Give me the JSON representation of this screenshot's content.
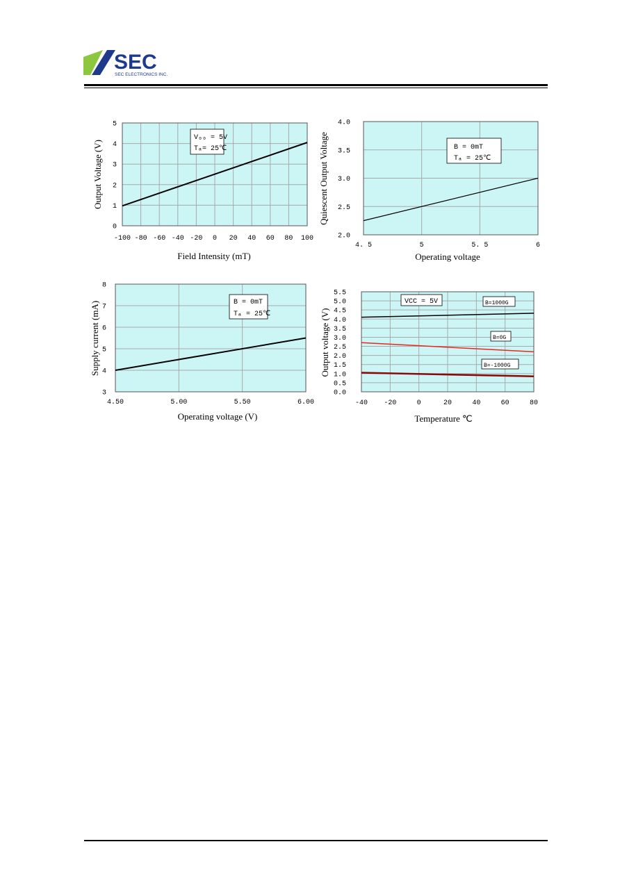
{
  "header": {
    "logo_text": "SEC",
    "logo_subtext": "SEC ELECTRONICS INC.",
    "colors": {
      "logo_green": "#8dc63f",
      "logo_blue": "#1e3a8a"
    }
  },
  "style": {
    "plot_bg": "#ccf6f6",
    "grid": "#a8a8a8",
    "black_line": "#000000",
    "red_line": "#e8261c",
    "dark_red_line": "#8a0a0a"
  },
  "chart_data": [
    {
      "type": "line",
      "xlabel": "Field Intensity (mT)",
      "ylabel": "Output Voltage (V)",
      "xlim": [
        -100,
        100
      ],
      "ylim": [
        0,
        5
      ],
      "xticks": [
        "-100",
        "-80",
        "-60",
        "-40",
        "-20",
        "0",
        "20",
        "40",
        "60",
        "80",
        "100"
      ],
      "yticks": [
        "0",
        "1",
        "2",
        "3",
        "4",
        "5"
      ],
      "annotation": [
        "V₀₀ = 5V",
        "Tₐ= 25℃"
      ],
      "series": [
        {
          "x": [
            -100,
            100
          ],
          "y": [
            0.97,
            4.05
          ],
          "color": "#000000"
        }
      ]
    },
    {
      "type": "line",
      "xlabel": "Operating voltage",
      "ylabel": "Quiescent Output Voltage",
      "xlim": [
        4.5,
        6
      ],
      "ylim": [
        2.0,
        4.0
      ],
      "xticks": [
        "4. 5",
        "5",
        "5. 5",
        "6"
      ],
      "yticks": [
        "2.0",
        "2.5",
        "3.0",
        "3.5",
        "4.0"
      ],
      "annotation": [
        "B  =  0mT",
        "Tₐ  =  25℃"
      ],
      "series": [
        {
          "x": [
            4.5,
            6
          ],
          "y": [
            2.25,
            3.0
          ],
          "color": "#000000"
        }
      ]
    },
    {
      "type": "line",
      "xlabel": "Operating voltage  (V)",
      "ylabel": "Supply current  (mA)",
      "xlim": [
        4.5,
        6.0
      ],
      "ylim": [
        3,
        8
      ],
      "xticks": [
        "4.50",
        "5.00",
        "5.50",
        "6.00"
      ],
      "yticks": [
        "3",
        "4",
        "5",
        "6",
        "7",
        "8"
      ],
      "annotation": [
        "B = 0mT",
        "Tₐ = 25℃"
      ],
      "series": [
        {
          "x": [
            4.5,
            6.0
          ],
          "y": [
            4.0,
            5.5
          ],
          "color": "#000000"
        }
      ]
    },
    {
      "type": "line",
      "xlabel": "Temperature    ℃",
      "ylabel": "Output voltage (V)",
      "xlim": [
        -40,
        85
      ],
      "ylim": [
        0.0,
        5.5
      ],
      "xticks": [
        "-40",
        "-20",
        "0",
        "20",
        "40",
        "60",
        "80"
      ],
      "yticks": [
        "0.0",
        "0.5",
        "1.0",
        "1.5",
        "2.0",
        "2.5",
        "3.0",
        "3.5",
        "4.0",
        "4.5",
        "5.0",
        "5.5"
      ],
      "annotation": [
        "VCC = 5V"
      ],
      "series": [
        {
          "name": "B=1000G",
          "x": [
            -40,
            85
          ],
          "y": [
            4.1,
            4.32
          ],
          "color": "#000000"
        },
        {
          "name": "B=0G",
          "x": [
            -40,
            85
          ],
          "y": [
            2.7,
            2.2
          ],
          "color": "#e8261c"
        },
        {
          "name": "B=-1000G",
          "x": [
            -40,
            85
          ],
          "y": [
            1.05,
            0.85
          ],
          "color": "#8a0a0a"
        }
      ]
    }
  ]
}
